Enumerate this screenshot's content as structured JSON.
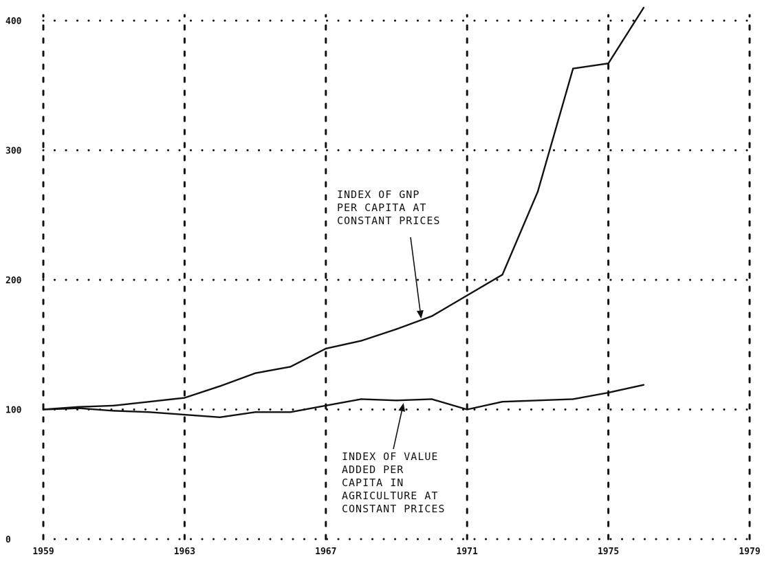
{
  "chart_data": {
    "type": "line",
    "title": "",
    "xlabel": "",
    "ylabel": "",
    "xlim": [
      1959,
      1979
    ],
    "ylim": [
      0,
      400
    ],
    "grid": true,
    "x_ticks": [
      1959,
      1963,
      1967,
      1971,
      1975,
      1979
    ],
    "y_ticks": [
      0,
      100,
      200,
      300,
      400
    ],
    "x_tick_labels": [
      "1959",
      "1963",
      "1967",
      "1971",
      "1975",
      "1979"
    ],
    "y_tick_labels": [
      "0",
      "100",
      "200",
      "300",
      "400"
    ],
    "series": [
      {
        "id": "gnp",
        "x": [
          1959,
          1960,
          1961,
          1962,
          1963,
          1964,
          1965,
          1966,
          1967,
          1968,
          1969,
          1970,
          1971,
          1972,
          1973,
          1974,
          1975,
          1976
        ],
        "values": [
          100,
          102,
          103,
          106,
          109,
          118,
          128,
          133,
          147,
          153,
          162,
          172,
          188,
          204,
          268,
          363,
          367,
          410
        ]
      },
      {
        "id": "agriculture",
        "x": [
          1959,
          1960,
          1961,
          1962,
          1963,
          1964,
          1965,
          1966,
          1967,
          1968,
          1969,
          1970,
          1971,
          1972,
          1973,
          1974,
          1975,
          1976
        ],
        "values": [
          100,
          101,
          99,
          98,
          96,
          94,
          98,
          98,
          103,
          108,
          107,
          108,
          100,
          106,
          107,
          108,
          113,
          119
        ]
      }
    ],
    "annotations": [
      {
        "id": "gnp-label",
        "lines": [
          "INDEX OF GNP",
          "PER CAPITA AT",
          "CONSTANT PRICES"
        ],
        "points_to": {
          "x": 1969.7,
          "y": 170
        }
      },
      {
        "id": "agriculture-label",
        "lines": [
          "INDEX OF VALUE",
          "ADDED PER",
          "CAPITA IN",
          "AGRICULTURE AT",
          "CONSTANT PRICES"
        ],
        "points_to": {
          "x": 1969.2,
          "y": 105
        }
      }
    ]
  }
}
